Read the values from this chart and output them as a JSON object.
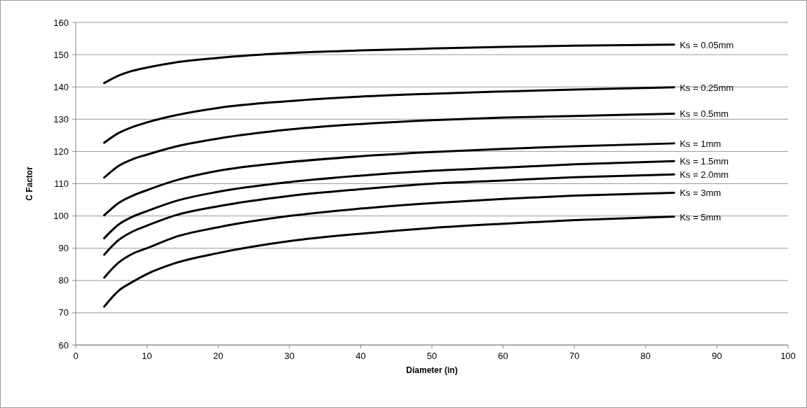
{
  "chart_data": {
    "type": "line",
    "xlabel": "Diameter (in)",
    "ylabel": "C Factor",
    "xlim": [
      0,
      100
    ],
    "xticks": [
      0,
      10,
      20,
      30,
      40,
      50,
      60,
      70,
      80,
      90,
      100
    ],
    "ylim": [
      60,
      160
    ],
    "yticks": [
      60,
      70,
      80,
      90,
      100,
      110,
      120,
      130,
      140,
      150,
      160
    ],
    "grid": "y",
    "legend": false,
    "marker": "none",
    "line_style": "solid",
    "x": [
      4,
      6,
      8,
      10,
      14,
      20,
      30,
      40,
      50,
      60,
      70,
      84
    ],
    "series": [
      {
        "name": "Ks = 0.05mm",
        "color": "#000000",
        "values": [
          141.2,
          143.5,
          145,
          146,
          147.6,
          149,
          150.5,
          151.3,
          151.9,
          152.4,
          152.8,
          153.1
        ]
      },
      {
        "name": "Ks = 0.25mm",
        "color": "#000000",
        "values": [
          122.7,
          125.7,
          127.6,
          129,
          131.2,
          133.5,
          135.6,
          137,
          137.9,
          138.6,
          139.2,
          139.9
        ]
      },
      {
        "name": "Ks = 0.5mm",
        "color": "#000000",
        "values": [
          111.9,
          115.5,
          117.6,
          119,
          121.5,
          124,
          126.8,
          128.5,
          129.7,
          130.5,
          131,
          131.7
        ]
      },
      {
        "name": "Ks = 1mm",
        "color": "#000000",
        "values": [
          100.2,
          104,
          106.3,
          108,
          111,
          114,
          116.7,
          118.5,
          119.8,
          120.8,
          121.6,
          122.5
        ]
      },
      {
        "name": "Ks = 1.5mm",
        "color": "#000000",
        "values": [
          93.1,
          97.3,
          99.8,
          101.5,
          104.6,
          107.5,
          110.5,
          112.5,
          114,
          115,
          116,
          117
        ]
      },
      {
        "name": "Ks = 2.0mm",
        "color": "#000000",
        "values": [
          88,
          92.5,
          95.2,
          97,
          100.2,
          103,
          106.2,
          108.3,
          110,
          111,
          112,
          112.9
        ]
      },
      {
        "name": "Ks = 3mm",
        "color": "#000000",
        "values": [
          80.9,
          85.5,
          88.3,
          90,
          93.5,
          96.5,
          100,
          102.3,
          104,
          105.3,
          106.3,
          107.2
        ]
      },
      {
        "name": "Ks = 5mm",
        "color": "#000000",
        "values": [
          71.9,
          76.8,
          79.6,
          82,
          85.4,
          88.5,
          92.2,
          94.5,
          96.3,
          97.6,
          98.7,
          99.8
        ]
      }
    ]
  }
}
